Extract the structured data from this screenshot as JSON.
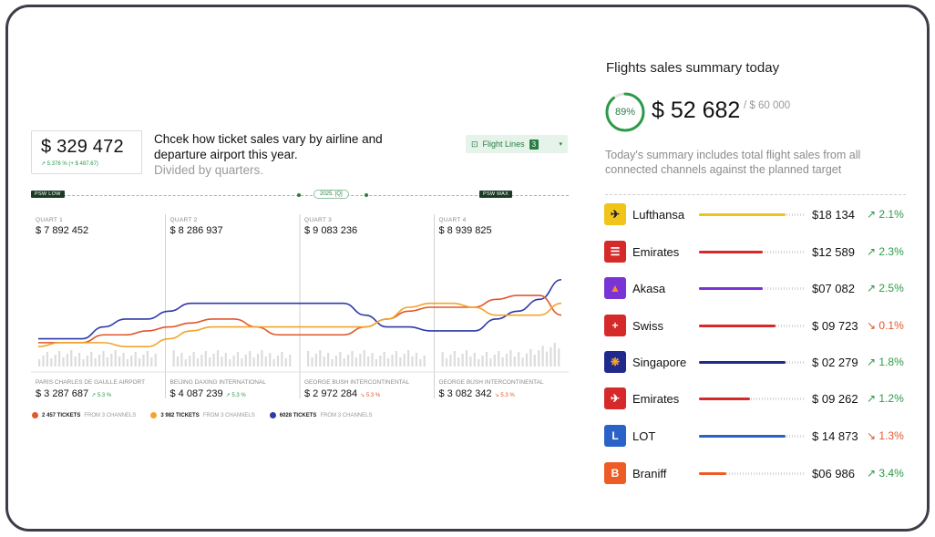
{
  "total_card": {
    "value": "$ 329 472",
    "change": "↗ 5.376 % (+ $ 487.67)"
  },
  "headline": "Chcek how ticket sales vary by airline and departure airport this year.",
  "subline": "Divided by quarters.",
  "flight_lines": {
    "label": "Flight Lines",
    "count": "3",
    "icon": "chart-icon",
    "chevron": "chevron-down-icon"
  },
  "psw": {
    "low": "PSW LOW",
    "year": "2025. [Q]",
    "max": "PSW MAX"
  },
  "quarters": [
    {
      "label": "QUART 1",
      "value": "$ 7 892 452",
      "airport": "PARIS CHARLES DE GAULLE AIRPORT",
      "amount": "$ 3 287 687",
      "change": "↗ 5.3 %",
      "direction": "up"
    },
    {
      "label": "QUART 2",
      "value": "$ 8 286 937",
      "airport": "BEIJING DAXING INTERNATIONAL",
      "amount": "$ 4 087 239",
      "change": "↗ 5.3 %",
      "direction": "up"
    },
    {
      "label": "QUART 3",
      "value": "$ 9 083 236",
      "airport": "GEORGE BUSH INTERCONTINENTAL",
      "amount": "$ 2 972 284",
      "change": "↘ 5.3 %",
      "direction": "down"
    },
    {
      "label": "QUART 4",
      "value": "$ 8 939 825",
      "airport": "GEORGE BUSH INTERCONTINENTAL",
      "amount": "$ 3 082 342",
      "change": "↘ 5.3 %",
      "direction": "down"
    }
  ],
  "legend": [
    {
      "count": "2 457 TICKETS",
      "sub": "FROM 3 CHANNELS",
      "color": "#e0582c"
    },
    {
      "count": "3 982 TICKETS",
      "sub": "FROM 3 CHANNELS",
      "color": "#f2a52a"
    },
    {
      "count": "6028 TICKETS",
      "sub": "FROM 3 CHANNELS",
      "color": "#2f3aa8"
    }
  ],
  "chart_data": {
    "type": "line",
    "x": [
      0,
      1,
      2,
      3,
      4,
      5,
      6,
      7,
      8,
      9,
      10,
      11,
      12,
      13,
      14,
      15,
      16,
      17,
      18,
      19,
      20,
      21,
      22,
      23,
      24
    ],
    "ylim": [
      0,
      100
    ],
    "series": [
      {
        "color": "#2f3aa8",
        "values": [
          34,
          34,
          34,
          40,
          44,
          44,
          48,
          52,
          52,
          52,
          52,
          52,
          52,
          52,
          52,
          46,
          40,
          40,
          38,
          38,
          38,
          44,
          48,
          54,
          64
        ]
      },
      {
        "color": "#e0582c",
        "values": [
          32,
          32,
          32,
          36,
          36,
          38,
          40,
          42,
          44,
          44,
          40,
          36,
          36,
          36,
          36,
          40,
          44,
          48,
          50,
          50,
          50,
          54,
          56,
          56,
          46
        ]
      },
      {
        "color": "#f2a52a",
        "values": [
          30,
          32,
          32,
          32,
          30,
          30,
          34,
          38,
          40,
          40,
          40,
          40,
          40,
          40,
          40,
          40,
          44,
          50,
          52,
          52,
          50,
          46,
          46,
          46,
          52
        ]
      }
    ]
  },
  "summary": {
    "title": "Flights sales summary today",
    "percent": "89%",
    "progress": 0.89,
    "value": "$ 52 682",
    "target": "/ $ 60 000",
    "description": "Today's summary includes total flight sales from all connected channels against the planned target"
  },
  "airlines": [
    {
      "name": "Lufthansa",
      "amount": "$18 134",
      "change": "↗ 2.1%",
      "direction": "up",
      "color": "#f0c419",
      "logo_bg": "#f0c419",
      "logo_glyph": "✈",
      "logo_color": "#1a1a40",
      "share": 0.82
    },
    {
      "name": "Emirates",
      "amount": "$12 589",
      "change": "↗ 2.3%",
      "direction": "up",
      "color": "#d62a2a",
      "logo_bg": "#d62a2a",
      "logo_glyph": "☰",
      "logo_color": "#ffffff",
      "share": 0.6
    },
    {
      "name": "Akasa",
      "amount": "$07 082",
      "change": "↗ 2.5%",
      "direction": "up",
      "color": "#7a34d6",
      "logo_bg": "#7a34d6",
      "logo_glyph": "▲",
      "logo_color": "#ff8a2a",
      "share": 0.6
    },
    {
      "name": "Swiss",
      "amount": "$ 09 723",
      "change": "↘ 0.1%",
      "direction": "down",
      "color": "#d62a2a",
      "logo_bg": "#d62a2a",
      "logo_glyph": "+",
      "logo_color": "#ffffff",
      "share": 0.72
    },
    {
      "name": "Singapore",
      "amount": "$ 02 279",
      "change": "↗ 1.8%",
      "direction": "up",
      "color": "#1f2a8c",
      "logo_bg": "#1f2a8c",
      "logo_glyph": "❋",
      "logo_color": "#f2a52a",
      "share": 0.82
    },
    {
      "name": "Emirates",
      "amount": "$ 09 262",
      "change": "↗ 1.2%",
      "direction": "up",
      "color": "#d62a2a",
      "logo_bg": "#d62a2a",
      "logo_glyph": "✈",
      "logo_color": "#ffffff",
      "share": 0.48
    },
    {
      "name": "LOT",
      "amount": "$ 14 873",
      "change": "↘ 1.3%",
      "direction": "down",
      "color": "#2b62c8",
      "logo_bg": "#2b62c8",
      "logo_glyph": "L",
      "logo_color": "#ffffff",
      "share": 0.82
    },
    {
      "name": "Braniff",
      "amount": "$06 986",
      "change": "↗ 3.4%",
      "direction": "up",
      "color": "#ee5c25",
      "logo_bg": "#ee5c25",
      "logo_glyph": "B",
      "logo_color": "#ffffff",
      "share": 0.26
    }
  ]
}
